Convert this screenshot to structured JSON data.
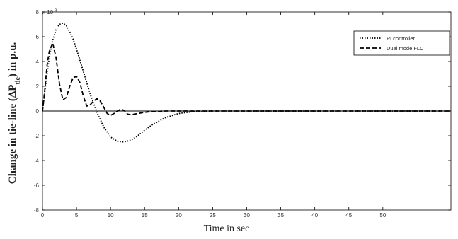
{
  "chart_data": {
    "type": "line",
    "xlabel": "Time in sec",
    "ylabel": "Change in tie-line (ΔP",
    "ylabel_sub": "tie",
    "ylabel_tail": ") in p.u.",
    "yscale_prefix": "x 10",
    "yscale_exp": "-3",
    "xlim": [
      0,
      60
    ],
    "ylim": [
      -8,
      8
    ],
    "xticks": [
      "0",
      "5",
      "10",
      "15",
      "20",
      "25",
      "30",
      "35",
      "40",
      "45",
      "50"
    ],
    "xtick_values": [
      0,
      5,
      10,
      15,
      20,
      25,
      30,
      35,
      40,
      45,
      50
    ],
    "yticks": [
      "8",
      "6",
      "4",
      "2",
      "0",
      "-2",
      "-4",
      "-6",
      "-8"
    ],
    "ytick_values": [
      8,
      6,
      4,
      2,
      0,
      -2,
      -4,
      -6,
      -8
    ],
    "legend_position": "top-right",
    "series": [
      {
        "name": "PI controller",
        "style": "dotted",
        "x": [
          0,
          0.5,
          1,
          1.5,
          2,
          2.5,
          3,
          3.5,
          4,
          4.5,
          5,
          6,
          7,
          8,
          9,
          10,
          11,
          12,
          13,
          14,
          15,
          16,
          18,
          20,
          22,
          25,
          30,
          60
        ],
        "y": [
          0,
          2.2,
          4.3,
          5.7,
          6.6,
          7.0,
          7.1,
          6.9,
          6.4,
          5.8,
          5.0,
          3.2,
          1.4,
          -0.1,
          -1.3,
          -2.1,
          -2.45,
          -2.5,
          -2.35,
          -2.0,
          -1.55,
          -1.15,
          -0.55,
          -0.2,
          -0.06,
          0,
          0,
          0
        ]
      },
      {
        "name": "Dual mode  FLC",
        "style": "dashed",
        "x": [
          0,
          0.3,
          0.7,
          1,
          1.5,
          2,
          2.5,
          3,
          3.5,
          4,
          4.5,
          5,
          5.5,
          6,
          6.5,
          7,
          7.5,
          8,
          8.5,
          9,
          9.5,
          10,
          10.5,
          11,
          11.5,
          12,
          12.5,
          13,
          14,
          15,
          16,
          18,
          20,
          25,
          60
        ],
        "y": [
          0,
          1.5,
          3.8,
          4.8,
          5.5,
          4.3,
          2.2,
          0.9,
          1.1,
          2.0,
          2.7,
          2.8,
          2.3,
          1.2,
          0.4,
          0.5,
          0.8,
          1.0,
          0.8,
          0.3,
          -0.2,
          -0.35,
          -0.2,
          0.0,
          0.15,
          0.05,
          -0.25,
          -0.3,
          -0.2,
          -0.1,
          -0.05,
          0,
          0,
          0,
          0
        ]
      }
    ]
  }
}
